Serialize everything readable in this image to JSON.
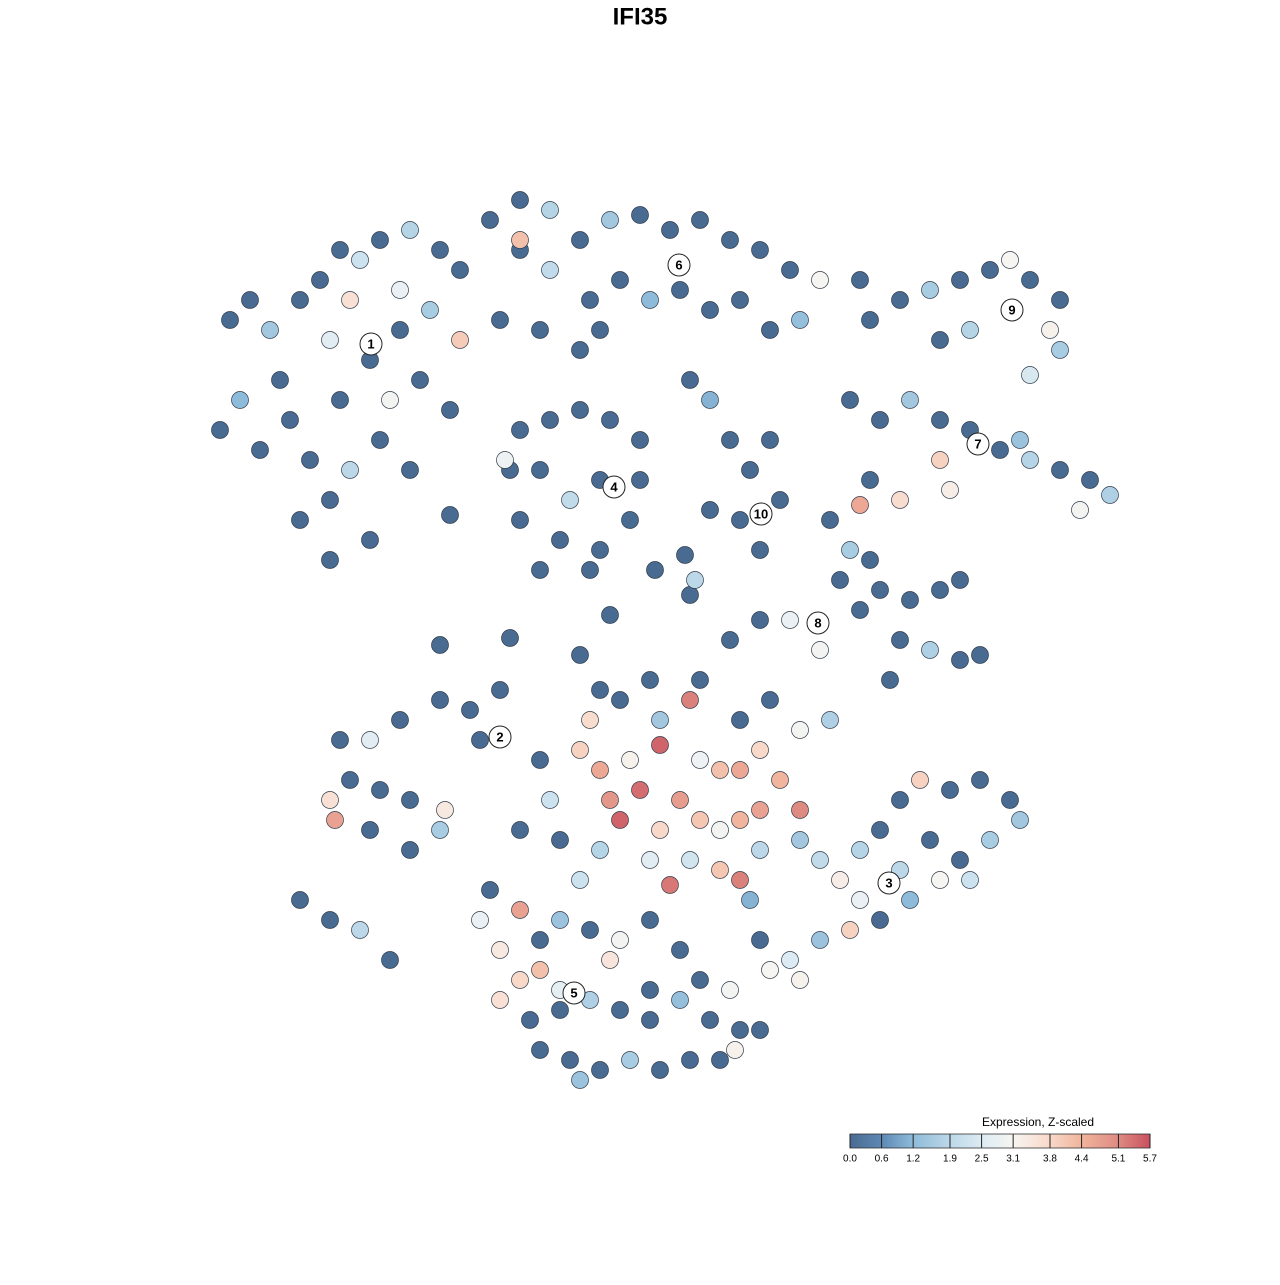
{
  "chart_data": {
    "type": "scatter",
    "title": "IFI35",
    "x": [
      23,
      25,
      27,
      30,
      32,
      34,
      36,
      38,
      41,
      44,
      46,
      35,
      33,
      37,
      40,
      43,
      46,
      24,
      22,
      26,
      29,
      31,
      33,
      35,
      38,
      41,
      30,
      33,
      37,
      39,
      42,
      45,
      28,
      34,
      40,
      49,
      52,
      55,
      58,
      61,
      64,
      67,
      70,
      73,
      76,
      79,
      82,
      52,
      55,
      59,
      62,
      65,
      68,
      71,
      74,
      77,
      80,
      52,
      50,
      54,
      60,
      69,
      71,
      58,
      52,
      55,
      58,
      61,
      64,
      51,
      54,
      57,
      60,
      64,
      52,
      56,
      60,
      54,
      59,
      63,
      50.5,
      73,
      77,
      75,
      78,
      74,
      76,
      71,
      87,
      90,
      93,
      96,
      99,
      101,
      103,
      106,
      105,
      97,
      94,
      106,
      103,
      85,
      88,
      91,
      94,
      97,
      100,
      103,
      106,
      109,
      111,
      108,
      94,
      95,
      90,
      87,
      86,
      102,
      83,
      85,
      84,
      86,
      88,
      91,
      94,
      96,
      90,
      93,
      96,
      98,
      89,
      79,
      82,
      76,
      73,
      87,
      34,
      37,
      40,
      44,
      47,
      50,
      48,
      35,
      38,
      41,
      33,
      33.5,
      37,
      41,
      44,
      44.5,
      30,
      33,
      36,
      39,
      58,
      60,
      63,
      66,
      69,
      70,
      72,
      74,
      76,
      78,
      61,
      64,
      68,
      70,
      72,
      74,
      76,
      80,
      62,
      66,
      69,
      72,
      74,
      76,
      67,
      65,
      60,
      56,
      58,
      62,
      66,
      74,
      77,
      80,
      83,
      55,
      54,
      52,
      70,
      65,
      60,
      59,
      80,
      82,
      84,
      86,
      88,
      90,
      92,
      95,
      98,
      101,
      102,
      99,
      96,
      94,
      91,
      88,
      85,
      82,
      79,
      77,
      80,
      76,
      75,
      86,
      93,
      97,
      90,
      49,
      48,
      50,
      52,
      54,
      56,
      59,
      62,
      65,
      68,
      70,
      52,
      54,
      50,
      53,
      56,
      59,
      62,
      65,
      68,
      71,
      74,
      76,
      54,
      57,
      60,
      63,
      66,
      69,
      72,
      73.5,
      58,
      61,
      56,
      73,
      65,
      44,
      51,
      58,
      61,
      69,
      68.5,
      65.5,
      69.5,
      45,
      86
    ],
    "y": [
      -32,
      -30,
      -33,
      -30,
      -28,
      -25,
      -26,
      -24,
      -23,
      -25,
      -27,
      -30,
      -34,
      -36,
      -33,
      -31,
      -34,
      -40,
      -43,
      -45,
      -42,
      -46,
      -50,
      -47,
      -44,
      -47,
      -52,
      -56,
      -54,
      -40,
      -38,
      -41,
      -38,
      -40,
      -29,
      -22,
      -20,
      -21,
      -24,
      -22,
      -21.5,
      -23,
      -22,
      -24,
      -25,
      -27,
      -28,
      -25,
      -27,
      -30,
      -28,
      -30,
      -29,
      -31,
      -30,
      -33,
      -32,
      -24,
      -32,
      -33,
      -33,
      -38,
      -40,
      -35,
      -43,
      -42,
      -41,
      -42,
      -44,
      -47,
      -47,
      -50,
      -48,
      -48,
      -52,
      -54,
      -55,
      -57,
      -57,
      -52,
      -46,
      -44,
      -44,
      -47,
      -50,
      -52,
      -55,
      -51,
      -32,
      -30,
      -29,
      -28,
      -27,
      -26,
      -28,
      -30,
      -33,
      -33,
      -34,
      -35,
      -37.5,
      -40,
      -42,
      -40,
      -42,
      -43,
      -45,
      -46,
      -47,
      -48,
      -49.5,
      -51,
      -46,
      -49,
      -50,
      -48,
      -50.5,
      -44,
      -52,
      -55,
      -58,
      -61,
      -59,
      -60,
      -59,
      -58,
      -64,
      -65,
      -66,
      -65.5,
      -68,
      -62,
      -65,
      -62,
      -64,
      -56,
      -74,
      -74,
      -72,
      -70,
      -71,
      -69,
      -74,
      -78,
      -79,
      -80,
      -80,
      -82,
      -83,
      -85,
      -83,
      -81,
      -90,
      -92,
      -93,
      -96,
      -75,
      -77,
      -76,
      -74.5,
      -70,
      -76,
      -77,
      -77,
      -75,
      -78,
      -80,
      -79,
      -80,
      -82,
      -83,
      -82,
      -81,
      -81,
      -82,
      -83,
      -86,
      -87,
      -88,
      -85,
      -88.5,
      -86,
      -85,
      -84,
      -88,
      -70,
      -72,
      -72,
      -70,
      -73,
      -72,
      -80,
      -76,
      -83,
      -68,
      -68,
      -69,
      -72,
      -84,
      -86,
      -88,
      -85,
      -83,
      -80,
      -78,
      -79,
      -78,
      -80,
      -82,
      -84,
      -86,
      -88,
      -90,
      -92,
      -93,
      -94,
      -96,
      -97,
      -98,
      -94,
      -90,
      -90,
      -84,
      -88,
      -87,
      -89,
      -92,
      -95,
      -91,
      -94,
      -92,
      -93,
      -94,
      -92,
      -95,
      -98,
      -98,
      -97,
      -100,
      -102,
      -101,
      -100,
      -101,
      -102,
      -100,
      -102,
      -103,
      -103,
      -105,
      -106,
      -107,
      -106,
      -107,
      -106,
      -106,
      -105,
      -108,
      -96,
      -99,
      -99,
      -99,
      -64.5,
      -63.8,
      -65.5,
      -61.5,
      -59.5,
      -55.5,
      -57,
      -58,
      -51.5,
      -28
    ],
    "values": [
      0,
      0,
      1.5,
      0,
      0,
      0,
      2.2,
      0,
      1.8,
      0,
      0,
      3.6,
      2.6,
      0,
      0,
      1.6,
      4.0,
      1.2,
      0,
      0,
      0,
      0,
      0,
      1.9,
      0,
      0,
      0,
      0,
      0,
      3.0,
      0,
      0,
      0,
      0,
      2.8,
      0,
      0,
      1.8,
      0,
      1.5,
      0,
      0,
      0,
      0,
      0,
      0,
      3.1,
      0,
      2.0,
      0,
      0,
      1.2,
      0,
      0,
      0,
      0,
      1.3,
      4.2,
      0,
      0,
      0,
      0,
      1.1,
      0,
      0,
      0,
      0,
      0,
      0,
      0,
      0,
      2.0,
      0,
      0,
      0,
      0,
      0,
      0,
      0,
      0,
      2.9,
      0,
      0,
      0,
      0,
      0,
      0,
      0,
      0,
      0,
      1.6,
      0,
      0,
      3.1,
      0,
      0,
      3.2,
      1.8,
      0,
      1.6,
      2.4,
      0,
      0,
      1.5,
      0,
      0,
      0,
      1.8,
      0,
      0,
      1.7,
      3.0,
      3.9,
      3.3,
      3.7,
      0,
      4.6,
      1.4,
      0,
      1.6,
      0,
      0,
      0,
      0,
      0,
      0,
      0,
      1.7,
      0,
      0,
      0,
      2.8,
      3.0,
      0,
      0,
      0,
      0,
      2.6,
      0,
      0,
      0,
      0,
      0,
      0,
      0,
      0,
      3.6,
      4.7,
      0,
      0,
      1.6,
      3.4,
      0,
      0,
      1.9,
      0,
      3.9,
      4.6,
      3.2,
      5.5,
      5.2,
      2.9,
      4.2,
      4.6,
      3.8,
      4.4,
      4.9,
      5.4,
      4.8,
      4.1,
      3.0,
      4.4,
      4.7,
      5.1,
      5.5,
      3.8,
      2.3,
      4.1,
      5.2,
      1.9,
      5.3,
      2.6,
      1.8,
      0,
      2.2,
      0,
      1.5,
      0,
      0,
      3.0,
      1.7,
      2.2,
      0,
      0,
      0,
      0,
      0,
      3.7,
      1.5,
      2.0,
      3.3,
      1.8,
      0,
      0,
      3.9,
      0,
      0,
      0,
      1.5,
      1.6,
      0,
      3.1,
      1.2,
      0,
      3.9,
      1.4,
      2.5,
      3.1,
      3.2,
      0,
      1.1,
      2.8,
      0,
      2.2,
      1.9,
      0,
      2.8,
      3.4,
      4.7,
      0,
      1.4,
      0,
      3.0,
      0,
      0,
      0,
      3.8,
      4.2,
      3.6,
      0,
      0,
      1.7,
      0,
      0,
      1.3,
      0,
      0,
      0,
      0,
      0,
      0,
      1.6,
      0,
      0,
      0,
      3.2,
      1.4,
      3.5,
      2.7,
      3.0,
      0,
      0,
      0,
      0,
      0,
      0,
      0,
      0,
      1.9,
      0,
      0
    ],
    "clusters": {
      "labels": [
        "1",
        "2",
        "3",
        "4",
        "5",
        "6",
        "7",
        "8",
        "9",
        "10"
      ],
      "x": [
        37.1,
        50,
        88.9,
        61.4,
        57.4,
        67.9,
        97.8,
        81.8,
        101.2,
        76.1
      ],
      "y": [
        -34.4,
        -73.7,
        -88.3,
        -48.7,
        -99.3,
        -26.5,
        -44.4,
        -62.3,
        -31,
        -51.4
      ]
    },
    "colorbar": {
      "title": "Expression, Z-scaled",
      "ticks": [
        {
          "value": 0,
          "label": "0.0"
        },
        0.6,
        1.2,
        1.9,
        2.5,
        3.1,
        3.8,
        4.4,
        5.1,
        5.7
      ],
      "colors": [
        "#4a6b91",
        "#5d89b5",
        "#8ebbd9",
        "#bcd8e8",
        "#dcebf3",
        "#f7f5f2",
        "#f8d8c8",
        "#f1b49c",
        "#de8b82",
        "#c9505f"
      ]
    }
  }
}
